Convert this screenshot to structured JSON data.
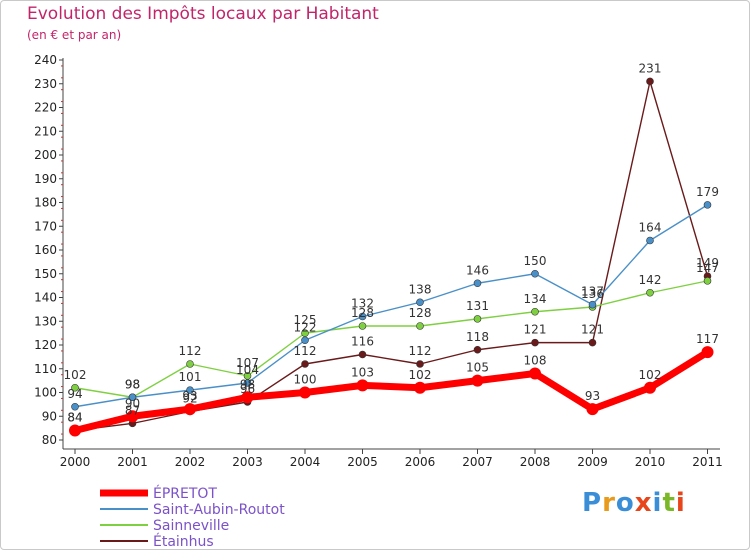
{
  "chart_data": {
    "type": "line",
    "title": "Evolution des Impôts locaux par Habitant",
    "subtitle": "(en € et par an)",
    "xlabel": "",
    "ylabel": "",
    "ylim": [
      80,
      240
    ],
    "yticks": [
      "80",
      "90",
      "100",
      "110",
      "120",
      "130",
      "140",
      "150",
      "160",
      "170",
      "180",
      "190",
      "200",
      "210",
      "220",
      "230",
      "240"
    ],
    "categories": [
      "2000",
      "2001",
      "2002",
      "2003",
      "2004",
      "2005",
      "2006",
      "2007",
      "2008",
      "2009",
      "2010",
      "2011"
    ],
    "series": [
      {
        "name": "ÉPRETOT",
        "color": "#ff0000",
        "values": [
          84,
          90,
          93,
          98,
          100,
          103,
          102,
          105,
          108,
          93,
          102,
          117
        ]
      },
      {
        "name": "Saint-Aubin-Routot",
        "color": "#4a90c8",
        "values": [
          94,
          98,
          101,
          104,
          122,
          132,
          138,
          146,
          150,
          137,
          164,
          179
        ]
      },
      {
        "name": "Sainneville",
        "color": "#7ed040",
        "values": [
          102,
          98,
          112,
          107,
          125,
          128,
          128,
          131,
          134,
          136,
          142,
          147
        ]
      },
      {
        "name": "Étainhus",
        "color": "#6a1a1a",
        "values": [
          84,
          87,
          92,
          96,
          112,
          116,
          112,
          118,
          121,
          121,
          231,
          149
        ]
      }
    ],
    "legend": "bottom-left",
    "grid": false
  },
  "logo": {
    "text": "Proxiti",
    "letters": [
      "P",
      "r",
      "o",
      "x",
      "i",
      "t",
      "i"
    ],
    "colors": [
      "#3a8ed8",
      "#e89a1a",
      "#3a8ed8",
      "#e8451a",
      "#3a8ed8",
      "#7ab828",
      "#e8451a"
    ]
  }
}
